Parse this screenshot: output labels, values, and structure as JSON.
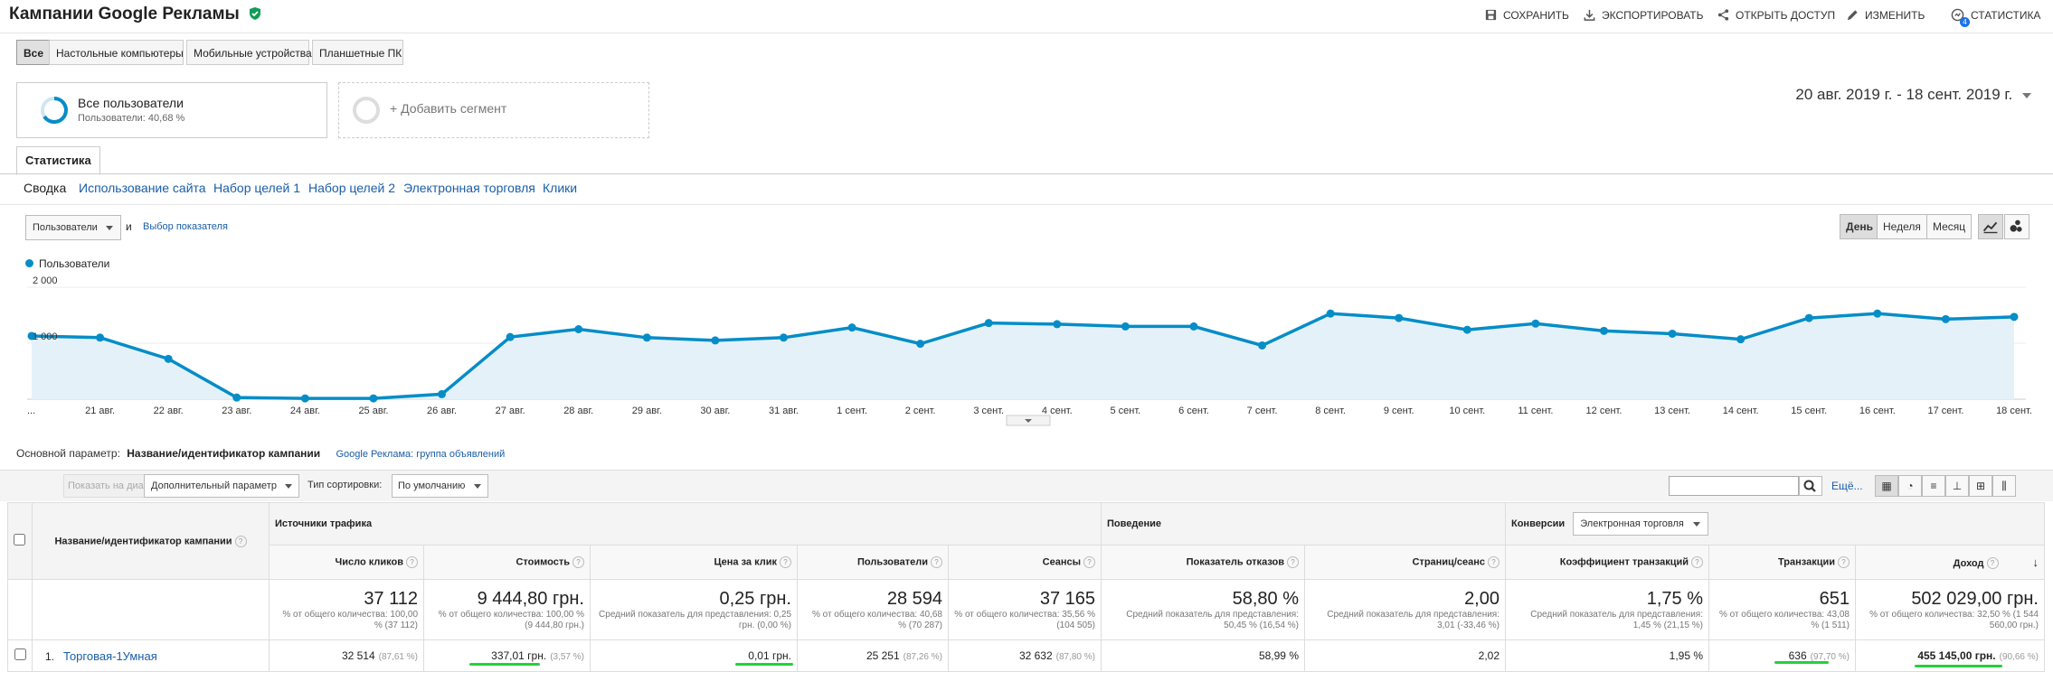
{
  "header": {
    "title": "Кампании Google Рекламы",
    "buttons": [
      "СОХРАНИТЬ",
      "ЭКСПОРТИРОВАТЬ",
      "ОТКРЫТЬ ДОСТУП",
      "ИЗМЕНИТЬ",
      "СТАТИСТИКА"
    ],
    "stats_badge": "4"
  },
  "device_tabs": [
    "Все",
    "Настольные компьютеры",
    "Мобильные устройства",
    "Планшетные ПК"
  ],
  "segment": {
    "name": "Все пользователи",
    "detail": "Пользователи: 40,68 %",
    "add_label": "+ Добавить сегмент"
  },
  "date_range": "20 авг. 2019 г. - 18 сент. 2019 г.",
  "report_tab": "Статистика",
  "sub_tabs": [
    "Сводка",
    "Использование сайта",
    "Набор целей 1",
    "Набор целей 2",
    "Электронная торговля",
    "Клики"
  ],
  "metric_selector": {
    "value": "Пользователи",
    "and": "и",
    "link": "Выбор показателя"
  },
  "period_buttons": [
    "День",
    "Неделя",
    "Месяц"
  ],
  "accent": "#058dc7",
  "chart_data": {
    "type": "area",
    "series": [
      {
        "name": "Пользователи",
        "values": [
          1130,
          1100,
          720,
          30,
          15,
          15,
          90,
          1110,
          1250,
          1100,
          1050,
          1100,
          1280,
          990,
          1360,
          1340,
          1300,
          1300,
          960,
          1530,
          1450,
          1240,
          1350,
          1220,
          1170,
          1070,
          1450,
          1530,
          1430,
          1470
        ]
      }
    ],
    "x_labels": [
      "...",
      "21 авг.",
      "22 авг.",
      "23 авг.",
      "24 авг.",
      "25 авг.",
      "26 авг.",
      "27 авг.",
      "28 авг.",
      "29 авг.",
      "30 авг.",
      "31 авг.",
      "1 сент.",
      "2 сент.",
      "3 сент.",
      "4 сент.",
      "5 сент.",
      "6 сент.",
      "7 сент.",
      "8 сент.",
      "9 сент.",
      "10 сент.",
      "11 сент.",
      "12 сент.",
      "13 сент.",
      "14 сент.",
      "15 сент.",
      "16 сент.",
      "17 сент.",
      "18 сент."
    ],
    "y_ticks": [
      "2 000",
      "1 000"
    ],
    "ylim": [
      0,
      2000
    ],
    "grid": true,
    "legend": "top-left"
  },
  "primary": {
    "label": "Основной параметр:",
    "value": "Название/идентификатор кампании",
    "alt": "Google Реклама: группа объявлений"
  },
  "tools": {
    "plot_rows": "Показать на диаграмме",
    "secondary": "Дополнительный параметр",
    "sort_label": "Тип сортировки:",
    "sort_value": "По умолчанию",
    "more": "Ещё..."
  },
  "table": {
    "dimension_header": "Название/идентификатор кампании",
    "groups": [
      "Источники трафика",
      "Поведение",
      "Конверсии"
    ],
    "conversion_select": "Электронная торговля",
    "columns": [
      "Число кликов",
      "Стоимость",
      "Цена за клик",
      "Пользователи",
      "Сеансы",
      "Показатель отказов",
      "Страниц/сеанс",
      "Коэффициент транзакций",
      "Транзакции",
      "Доход"
    ],
    "totals": [
      {
        "value": "37 112",
        "sub": "% от общего количества: 100,00 % (37 112)"
      },
      {
        "value": "9 444,80 грн.",
        "sub": "% от общего количества: 100,00 % (9 444,80 грн.)"
      },
      {
        "value": "0,25 грн.",
        "sub": "Средний показатель для представления: 0,25 грн. (0,00 %)"
      },
      {
        "value": "28 594",
        "sub": "% от общего количества: 40,68 % (70 287)"
      },
      {
        "value": "37 165",
        "sub": "% от общего количества: 35,56 % (104 505)"
      },
      {
        "value": "58,80 %",
        "sub": "Средний показатель для представления: 50,45 % (16,54 %)"
      },
      {
        "value": "2,00",
        "sub": "Средний показатель для представления: 3,01 (-33,46 %)"
      },
      {
        "value": "1,75 %",
        "sub": "Средний показатель для представления: 1,45 % (21,15 %)"
      },
      {
        "value": "651",
        "sub": "% от общего количества: 43,08 % (1 511)"
      },
      {
        "value": "502 029,00 грн.",
        "sub": "% от общего количества: 32,50 % (1 544 560,00 грн.)"
      }
    ],
    "row1": {
      "index": "1.",
      "name": "Торговая-1Умная",
      "cells": [
        {
          "v": "32 514",
          "p": "(87,61 %)"
        },
        {
          "v": "337,01 грн.",
          "p": "(3,57 %)"
        },
        {
          "v": "0,01 грн.",
          "p": ""
        },
        {
          "v": "25 251",
          "p": "(87,26 %)"
        },
        {
          "v": "32 632",
          "p": "(87,80 %)"
        },
        {
          "v": "58,99 %",
          "p": ""
        },
        {
          "v": "2,02",
          "p": ""
        },
        {
          "v": "1,95 %",
          "p": ""
        },
        {
          "v": "636",
          "p": "(97,70 %)"
        },
        {
          "v": "455 145,00 грн.",
          "p": "(90,66 %)"
        }
      ]
    }
  }
}
